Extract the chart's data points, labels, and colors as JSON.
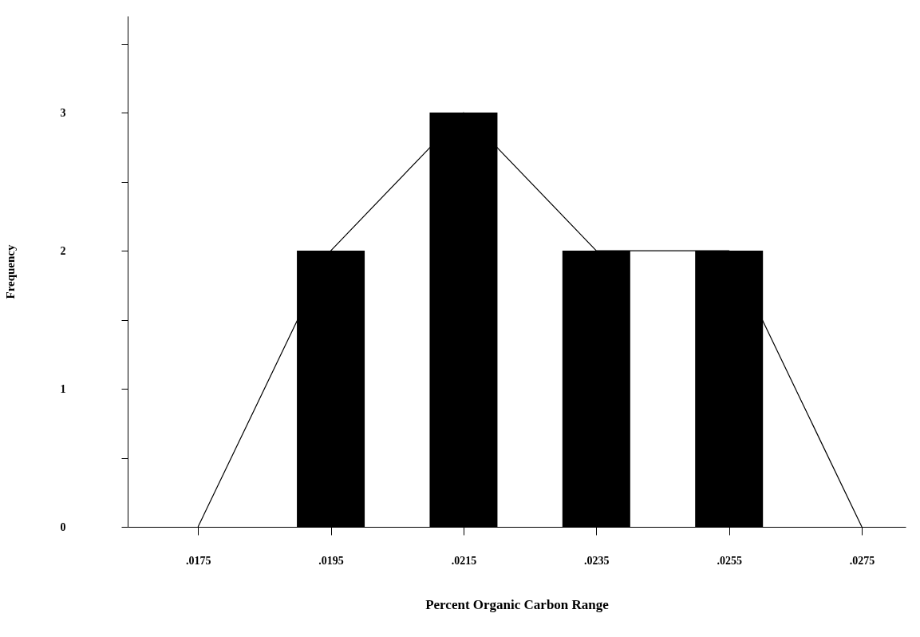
{
  "chart_data": {
    "type": "bar",
    "xlabel": "Percent Organic Carbon Range",
    "ylabel": "Frequency",
    "xlim": [
      0.0165,
      0.0281
    ],
    "ylim": [
      0,
      3.7
    ],
    "xticks": [
      {
        "value": 0.0175,
        "label": ".0175"
      },
      {
        "value": 0.0195,
        "label": ".0195"
      },
      {
        "value": 0.0215,
        "label": ".0215"
      },
      {
        "value": 0.0235,
        "label": ".0235"
      },
      {
        "value": 0.0255,
        "label": ".0255"
      },
      {
        "value": 0.0275,
        "label": ".0275"
      }
    ],
    "yticks": [
      0,
      {
        "value": 0.5,
        "label": null
      },
      1,
      {
        "value": 1.5,
        "label": null
      },
      2,
      {
        "value": 2.5,
        "label": null
      },
      3,
      {
        "value": 3.5,
        "label": null
      }
    ],
    "grid": false,
    "series": [
      {
        "type": "line",
        "color": "#000000",
        "x": [
          0.0175,
          0.0195,
          0.0215,
          0.0235,
          0.0255,
          0.0275
        ],
        "values": [
          0,
          2,
          3,
          2,
          2,
          0
        ]
      },
      {
        "color": "#000000",
        "x": [
          0.0195,
          0.0215,
          0.0235,
          0.0255
        ],
        "values": [
          2,
          3,
          2,
          2
        ]
      }
    ]
  }
}
